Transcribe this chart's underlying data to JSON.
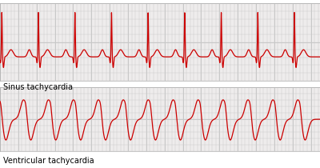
{
  "top_label": "Sinus tachycardia",
  "bottom_label": "Ventricular tachycardia",
  "ecg_color": "#cc0000",
  "grid_color": "#c8c8c8",
  "background_color": "#eeecec",
  "label_fontsize": 7,
  "fig_bg": "#ffffff",
  "sinus_hr": 150,
  "vt_hr": 220
}
